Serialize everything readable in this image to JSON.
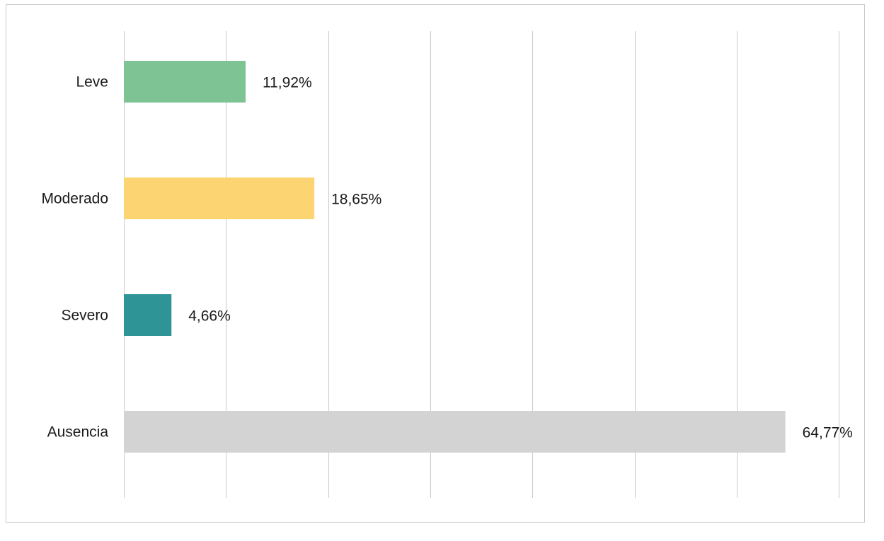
{
  "chart_data": {
    "type": "bar",
    "orientation": "horizontal",
    "categories": [
      "Leve",
      "Moderado",
      "Severo",
      "Ausencia"
    ],
    "values": [
      11.92,
      18.65,
      4.66,
      64.77
    ],
    "value_labels": [
      "11,92%",
      "18,65%",
      "4,66%",
      "64,77%"
    ],
    "colors": [
      "#7dc393",
      "#fcd572",
      "#2f9496",
      "#d3d3d3"
    ],
    "xlim": [
      0,
      70
    ],
    "grid": true,
    "gridline_step": 10,
    "title": "",
    "xlabel": "",
    "ylabel": ""
  }
}
